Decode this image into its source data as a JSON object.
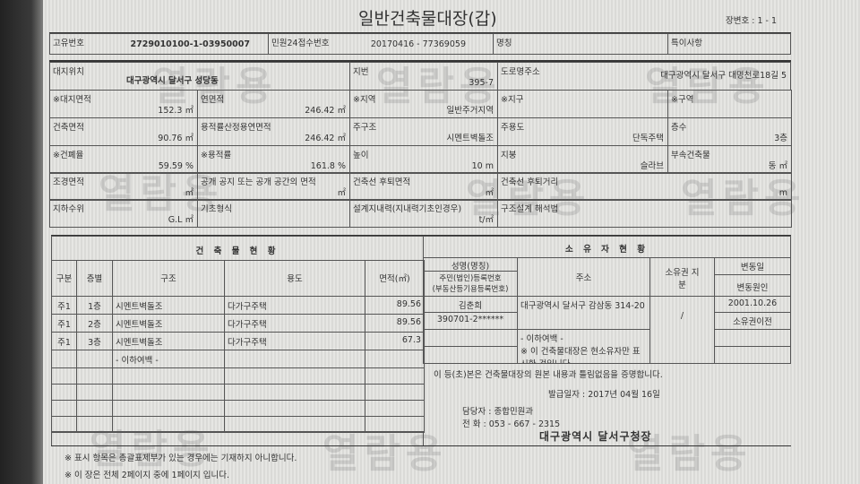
{
  "title": "일반건축물대장(갑)",
  "page_no": "장변호 : 1 - 1",
  "watermark": "열람용",
  "header": {
    "id_label": "고유번호",
    "id_value": "2729010100-1-03950007",
    "receipt_label": "민원24접수번호",
    "receipt_value": "20170416 - 77369059",
    "name_label": "명칭",
    "note_label": "특이사항"
  },
  "site": {
    "location_label": "대지위치",
    "location_value": "대구광역시 달서구 성당동",
    "lot_label": "지번",
    "lot_value": "395-7",
    "road_label": "도로명주소",
    "road_value": "대구광역시 달서구 대명천로18길 5"
  },
  "grid": [
    [
      {
        "l": "※대지면적",
        "v": "152.3 ㎡"
      },
      {
        "l": "연면적",
        "v": "246.42 ㎡"
      },
      {
        "l": "※지역",
        "v": "일반주거지역"
      },
      {
        "l": "※지구",
        "v": ""
      },
      {
        "l": "※구역",
        "v": ""
      }
    ],
    [
      {
        "l": "건축면적",
        "v": "90.76 ㎡"
      },
      {
        "l": "용적률산정용연면적",
        "v": "246.42 ㎡"
      },
      {
        "l": "주구조",
        "v": "시멘트벽돌조"
      },
      {
        "l": "주용도",
        "v": "단독주택"
      },
      {
        "l": "층수",
        "v": "3층"
      }
    ],
    [
      {
        "l": "※건폐율",
        "v": "59.59 %"
      },
      {
        "l": "※용적률",
        "v": "161.8 %"
      },
      {
        "l": "높이",
        "v": "10 m"
      },
      {
        "l": "지붕",
        "v": "슬라브"
      },
      {
        "l": "부속건축물",
        "v": "동 ㎡"
      }
    ],
    [
      {
        "l": "조경면적",
        "v": "㎡"
      },
      {
        "l": "공개 공지 또는 공개 공간의 면적",
        "v": "㎡"
      },
      {
        "l": "건축선 후퇴면적",
        "v": "㎡"
      },
      {
        "l": "건축선 후퇴거리",
        "v": "m"
      }
    ],
    [
      {
        "l": "지하수위",
        "v": "G.L ㎡"
      },
      {
        "l": "기초형식",
        "v": ""
      },
      {
        "l": "설계지내력(지내력기초인경우)",
        "v": "t/㎡"
      },
      {
        "l": "구조설계 해석법",
        "v": ""
      }
    ]
  ],
  "building": {
    "title": "건 축 물 현 황",
    "columns": [
      "구분",
      "층별",
      "구조",
      "용도",
      "면적(㎡)"
    ],
    "rows": [
      [
        "주1",
        "1층",
        "시멘트벽돌조",
        "다가구주택",
        "89.56"
      ],
      [
        "주1",
        "2층",
        "시멘트벽돌조",
        "다가구주택",
        "89.56"
      ],
      [
        "주1",
        "3층",
        "시멘트벽돌조",
        "다가구주택",
        "67.3"
      ],
      [
        "",
        "",
        "- 이하여백 -",
        "",
        ""
      ]
    ]
  },
  "owner": {
    "title": "소 유 자 현 황",
    "col_name": "성명(명칭)",
    "col_id": "주민(법인)등록번호",
    "col_id2": "(부동산등기용등록번호)",
    "col_addr": "주소",
    "col_share": "소유권 지분",
    "col_date": "변동일",
    "col_cause": "변동원인",
    "name": "김춘희",
    "id": "390701-2******",
    "addr": "대구광역시 달서구 감삼동 314-20",
    "share": "/",
    "date": "2001.10.26",
    "cause": "소유권이전",
    "blank": "- 이하여백 -",
    "note": "※ 이 건축물대장은 현소유자만 표시한 것입니다."
  },
  "cert": {
    "statement": "이 등(초)본은 건축물대장의 원본 내용과 틀림없음을 증명합니다.",
    "issue_date": "발급일자 : 2017년 04월 16일",
    "dept": "담당자 : 종합민원과",
    "phone": "전  화 : 053 - 667 - 2315",
    "issuer": "대구광역시 달서구청장"
  },
  "footnotes": [
    "※ 표시 항목은 총괄표제부가 있는 경우에는 기재하지 아니합니다.",
    "※ 이 장은 전체 2페이지 중에 1페이지 입니다."
  ]
}
